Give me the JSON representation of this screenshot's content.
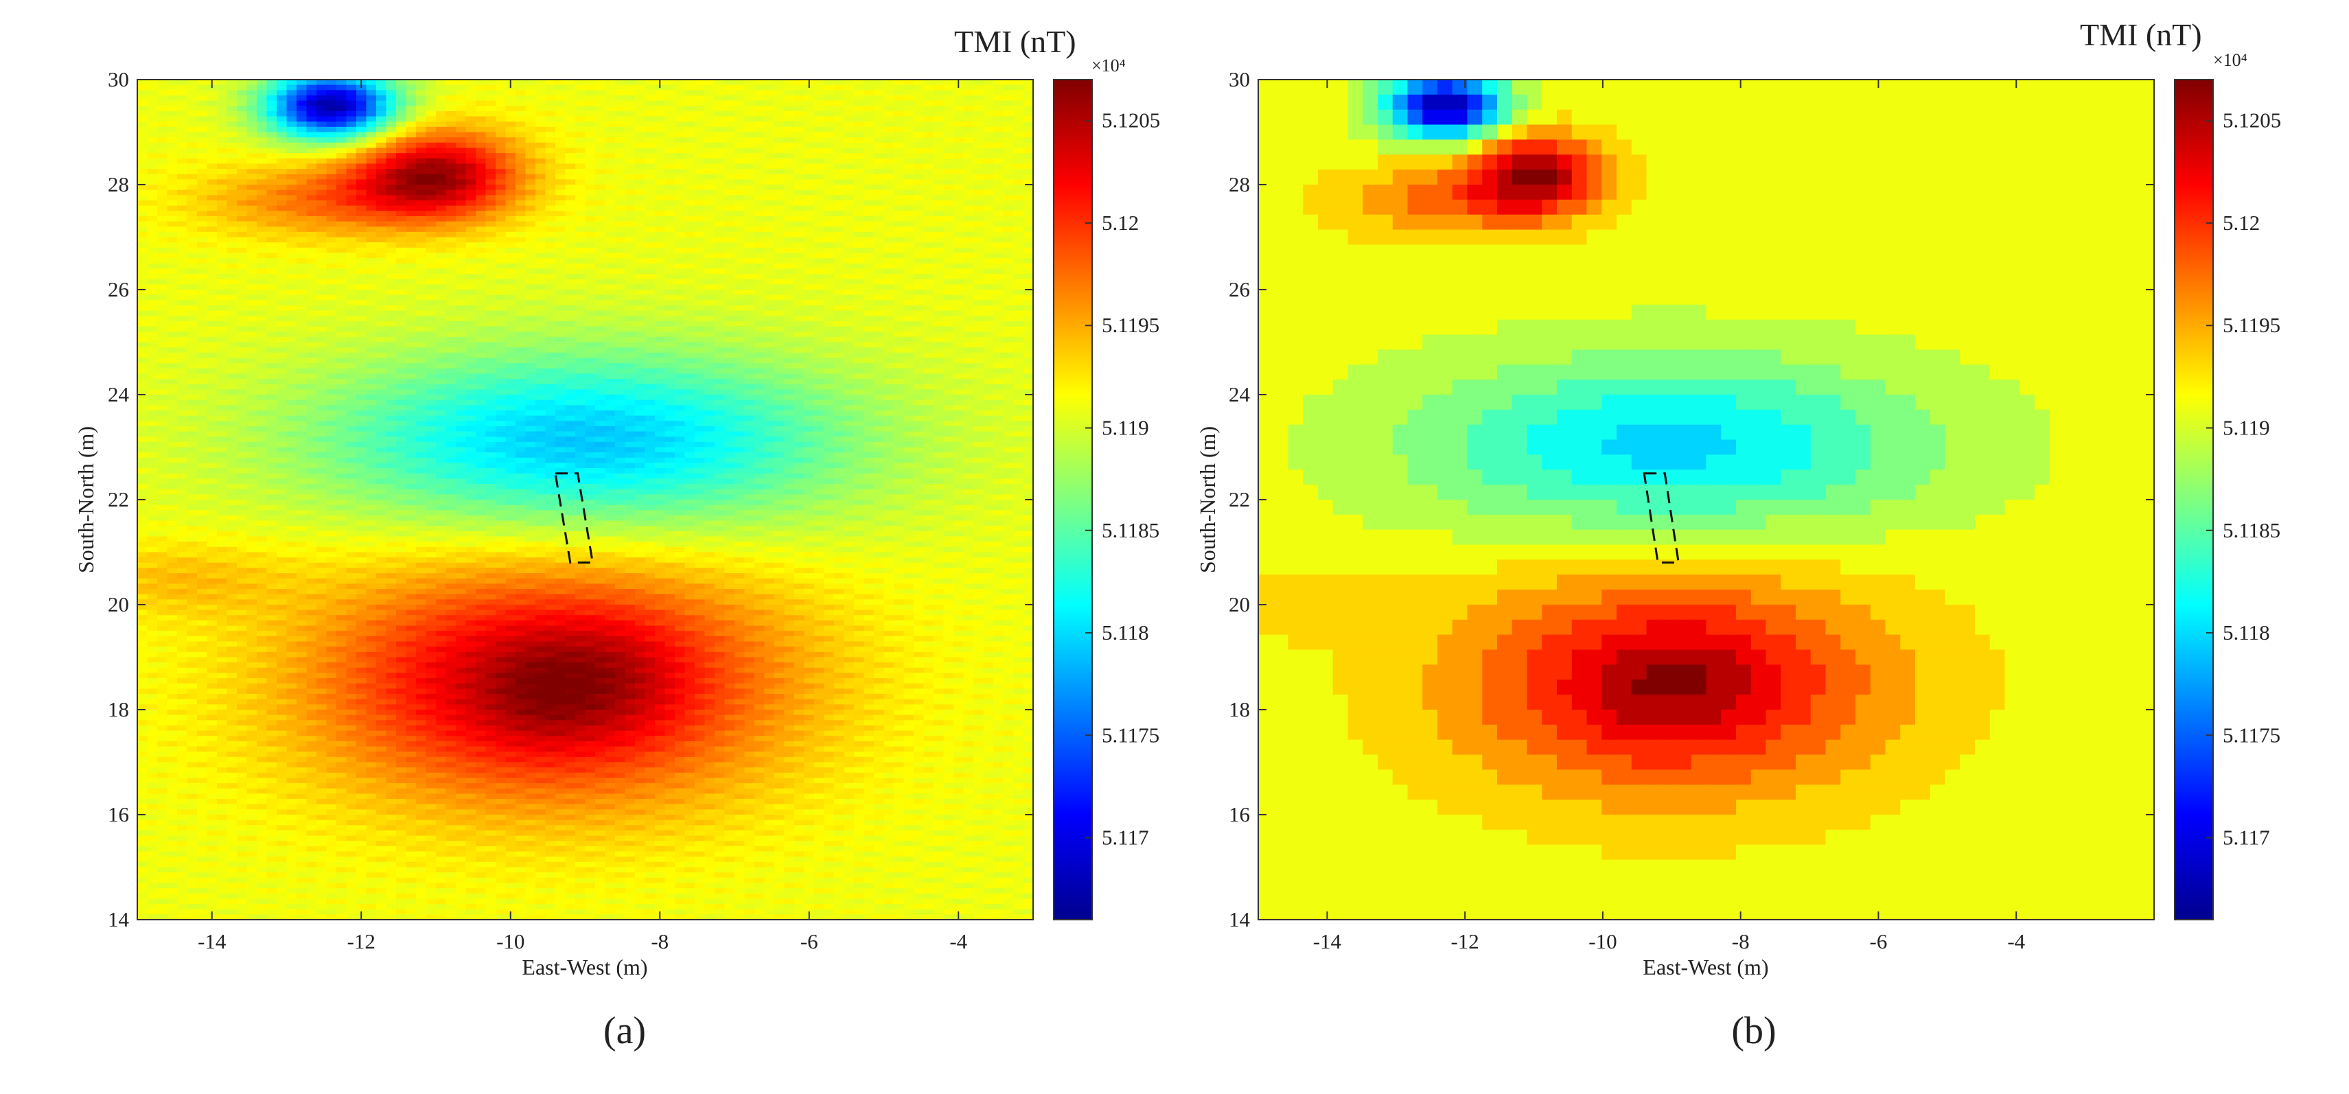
{
  "chart_data": [
    {
      "type": "heatmap",
      "variant": "raw",
      "panel_label": "(a)",
      "title": "",
      "xlabel": "East-West (m)",
      "ylabel": "South-North (m)",
      "xlim": [
        -15,
        -3
      ],
      "ylim": [
        14,
        30
      ],
      "x_ticks": [
        -14,
        -12,
        -10,
        -8,
        -6,
        -4
      ],
      "y_ticks": [
        14,
        16,
        18,
        20,
        22,
        24,
        26,
        28,
        30
      ],
      "x_tick_labels": [
        "-14",
        "-12",
        "-10",
        "-8",
        "-6",
        "-4"
      ],
      "y_tick_labels": [
        "14",
        "16",
        "18",
        "20",
        "22",
        "24",
        "26",
        "28",
        "30"
      ],
      "colorbar": {
        "title": "TMI (nT)",
        "exponent": "×10⁴",
        "range": [
          5.1166,
          5.1207
        ],
        "ticks": [
          5.117,
          5.1175,
          5.118,
          5.1185,
          5.119,
          5.1195,
          5.12,
          5.1205
        ],
        "tick_labels": [
          "5.117",
          "5.1175",
          "5.118",
          "5.1185",
          "5.119",
          "5.1195",
          "5.12",
          "5.1205"
        ],
        "colormap": "jet"
      },
      "field": {
        "background": 5.1191,
        "anomalies": [
          {
            "x": -12.4,
            "y": 29.5,
            "sx": 0.6,
            "sy": 0.45,
            "amp": -0.0024
          },
          {
            "x": -11.0,
            "y": 28.2,
            "sx": 0.8,
            "sy": 0.6,
            "amp": 0.0014
          },
          {
            "x": -12.5,
            "y": 27.7,
            "sx": 1.2,
            "sy": 0.5,
            "amp": 0.0006
          },
          {
            "x": -9.0,
            "y": 23.1,
            "sx": 2.5,
            "sy": 1.2,
            "amp": -0.0012
          },
          {
            "x": -9.5,
            "y": 18.5,
            "sx": 2.2,
            "sy": 1.6,
            "amp": 0.0014
          },
          {
            "x": -8.6,
            "y": 18.6,
            "sx": 0.6,
            "sy": 0.8,
            "amp": 0.0002
          },
          {
            "x": -9.6,
            "y": 18.3,
            "sx": 0.5,
            "sy": 0.7,
            "amp": 0.0002
          },
          {
            "x": -14.5,
            "y": 20.5,
            "sx": 1.0,
            "sy": 0.5,
            "amp": 0.0003
          }
        ]
      },
      "annotation": {
        "type": "dashed-box",
        "corners": [
          [
            -9.4,
            22.5
          ],
          [
            -9.1,
            22.5
          ],
          [
            -8.9,
            20.8
          ],
          [
            -9.2,
            20.8
          ]
        ]
      }
    },
    {
      "type": "heatmap",
      "variant": "filtered-contour",
      "panel_label": "(b)",
      "title": "",
      "xlabel": "East-West (m)",
      "ylabel": "South-North (m)",
      "xlim": [
        -15,
        -2
      ],
      "ylim": [
        14,
        30
      ],
      "x_ticks": [
        -14,
        -12,
        -10,
        -8,
        -6,
        -4
      ],
      "y_ticks": [
        14,
        16,
        18,
        20,
        22,
        24,
        26,
        28,
        30
      ],
      "x_tick_labels": [
        "-14",
        "-12",
        "-10",
        "-8",
        "-6",
        "-4"
      ],
      "y_tick_labels": [
        "14",
        "16",
        "18",
        "20",
        "22",
        "24",
        "26",
        "28",
        "30"
      ],
      "colorbar": {
        "title": "TMI (nT)",
        "exponent": "×10⁴",
        "range": [
          5.1166,
          5.1207
        ],
        "ticks": [
          5.117,
          5.1175,
          5.118,
          5.1185,
          5.119,
          5.1195,
          5.12,
          5.1205
        ],
        "tick_labels": [
          "5.117",
          "5.1175",
          "5.118",
          "5.1185",
          "5.119",
          "5.1195",
          "5.12",
          "5.1205"
        ],
        "colormap": "jet"
      },
      "field": {
        "background": 5.1191,
        "anomalies": [
          {
            "x": -12.3,
            "y": 29.5,
            "sx": 0.6,
            "sy": 0.45,
            "amp": -0.0024
          },
          {
            "x": -11.0,
            "y": 28.2,
            "sx": 0.7,
            "sy": 0.55,
            "amp": 0.0014
          },
          {
            "x": -12.3,
            "y": 27.7,
            "sx": 1.2,
            "sy": 0.5,
            "amp": 0.0006
          },
          {
            "x": -9.0,
            "y": 23.0,
            "sx": 2.6,
            "sy": 1.2,
            "amp": -0.0011
          },
          {
            "x": -9.0,
            "y": 18.5,
            "sx": 2.2,
            "sy": 1.5,
            "amp": 0.0013
          },
          {
            "x": -9.5,
            "y": 18.3,
            "sx": 0.5,
            "sy": 0.7,
            "amp": 0.0002
          },
          {
            "x": -8.5,
            "y": 18.6,
            "sx": 0.5,
            "sy": 0.7,
            "amp": 0.0002
          },
          {
            "x": -14.5,
            "y": 20.0,
            "sx": 1.0,
            "sy": 0.5,
            "amp": 0.0002
          }
        ]
      },
      "annotation": {
        "type": "dashed-box",
        "corners": [
          [
            -9.4,
            22.5
          ],
          [
            -9.1,
            22.5
          ],
          [
            -8.9,
            20.8
          ],
          [
            -9.2,
            20.8
          ]
        ]
      }
    }
  ]
}
